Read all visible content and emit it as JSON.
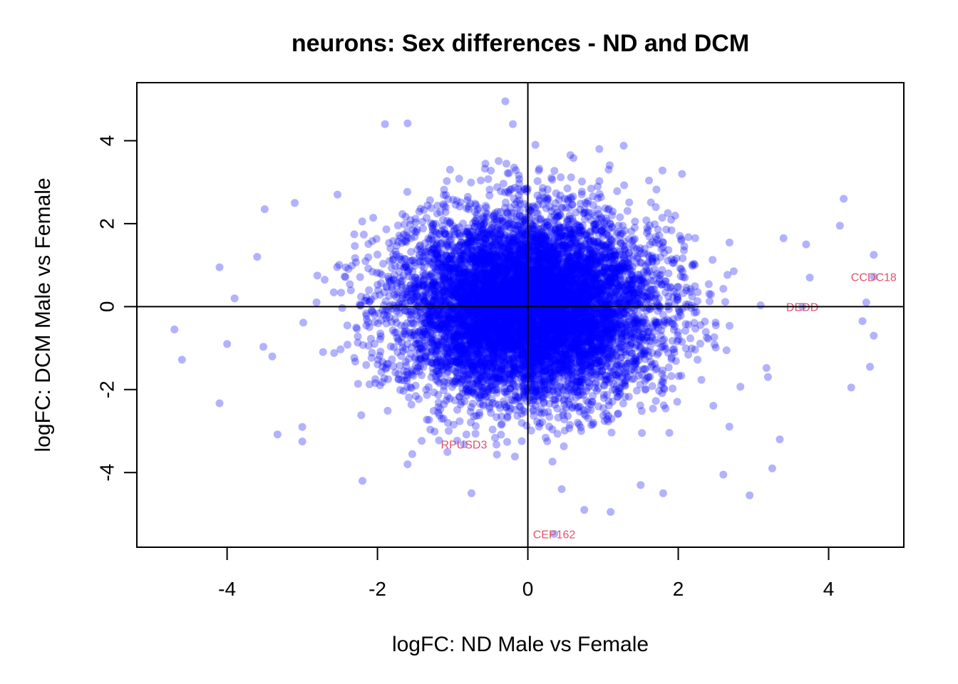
{
  "chart_data": {
    "type": "scatter",
    "title": "neurons: Sex differences - ND and DCM",
    "xlabel": "logFC: ND Male vs Female",
    "ylabel": "logFC: DCM Male vs Female",
    "xlim": [
      -5.2,
      5.0
    ],
    "ylim": [
      -5.8,
      5.4
    ],
    "xticks": [
      "-4",
      "-2",
      "0",
      "2",
      "4"
    ],
    "xtick_values": [
      -4,
      -2,
      0,
      2,
      4
    ],
    "yticks": [
      "-4",
      "-2",
      "0",
      "2",
      "4"
    ],
    "ytick_values": [
      -4,
      -2,
      0,
      2,
      4
    ],
    "reference_lines": {
      "x": 0,
      "y": 0
    },
    "point_color": "#0000ff",
    "point_opacity": 0.3,
    "label_color": "#df536b",
    "grid": false,
    "n_background_points": 9000,
    "background_spread": {
      "sd_x": 0.85,
      "sd_y": 1.1
    },
    "outliers": [
      {
        "x": -4.7,
        "y": -0.55
      },
      {
        "x": -4.6,
        "y": -1.28
      },
      {
        "x": -4.1,
        "y": -2.33
      },
      {
        "x": -4.1,
        "y": 0.95
      },
      {
        "x": -4.0,
        "y": -0.9
      },
      {
        "x": -3.6,
        "y": 1.2
      },
      {
        "x": -3.5,
        "y": 2.35
      },
      {
        "x": -3.0,
        "y": -3.25
      },
      {
        "x": -3.1,
        "y": 2.5
      },
      {
        "x": -2.2,
        "y": -4.2
      },
      {
        "x": -1.9,
        "y": 4.4
      },
      {
        "x": -1.6,
        "y": 4.42
      },
      {
        "x": -0.3,
        "y": 4.95
      },
      {
        "x": -0.2,
        "y": 4.4
      },
      {
        "x": 0.1,
        "y": 3.9
      },
      {
        "x": 0.95,
        "y": 3.8
      },
      {
        "x": 0.75,
        "y": -4.9
      },
      {
        "x": 1.1,
        "y": -4.95
      },
      {
        "x": 1.8,
        "y": -4.5
      },
      {
        "x": 2.05,
        "y": 3.2
      },
      {
        "x": 2.6,
        "y": -4.05
      },
      {
        "x": 2.95,
        "y": -4.55
      },
      {
        "x": 3.25,
        "y": -3.9
      },
      {
        "x": 3.35,
        "y": -3.2
      },
      {
        "x": 4.2,
        "y": 2.6
      },
      {
        "x": 4.15,
        "y": 1.95
      },
      {
        "x": 4.3,
        "y": -1.95
      },
      {
        "x": 4.6,
        "y": 1.25
      },
      {
        "x": 4.55,
        "y": -1.45
      },
      {
        "x": 4.6,
        "y": -0.7
      },
      {
        "x": 4.5,
        "y": 0.1
      },
      {
        "x": 4.45,
        "y": -0.35
      },
      {
        "x": 3.75,
        "y": 0.7
      },
      {
        "x": 3.7,
        "y": 1.5
      },
      {
        "x": 3.4,
        "y": 1.65
      },
      {
        "x": -2.8,
        "y": 0.75
      },
      {
        "x": -3.9,
        "y": 0.2
      },
      {
        "x": -3.4,
        "y": -1.2
      },
      {
        "x": -3.0,
        "y": -2.9
      },
      {
        "x": -1.6,
        "y": -3.8
      },
      {
        "x": -0.75,
        "y": -4.5
      },
      {
        "x": 0.45,
        "y": -4.4
      },
      {
        "x": 1.5,
        "y": -4.3
      }
    ],
    "labeled_points": [
      {
        "label": "CCDC18",
        "x": 4.6,
        "y": 0.72
      },
      {
        "label": "DEDD",
        "x": 3.65,
        "y": 0.0
      },
      {
        "label": "RPUSD3",
        "x": -0.85,
        "y": -3.32
      },
      {
        "label": "CEP162",
        "x": 0.35,
        "y": -5.48
      }
    ]
  }
}
